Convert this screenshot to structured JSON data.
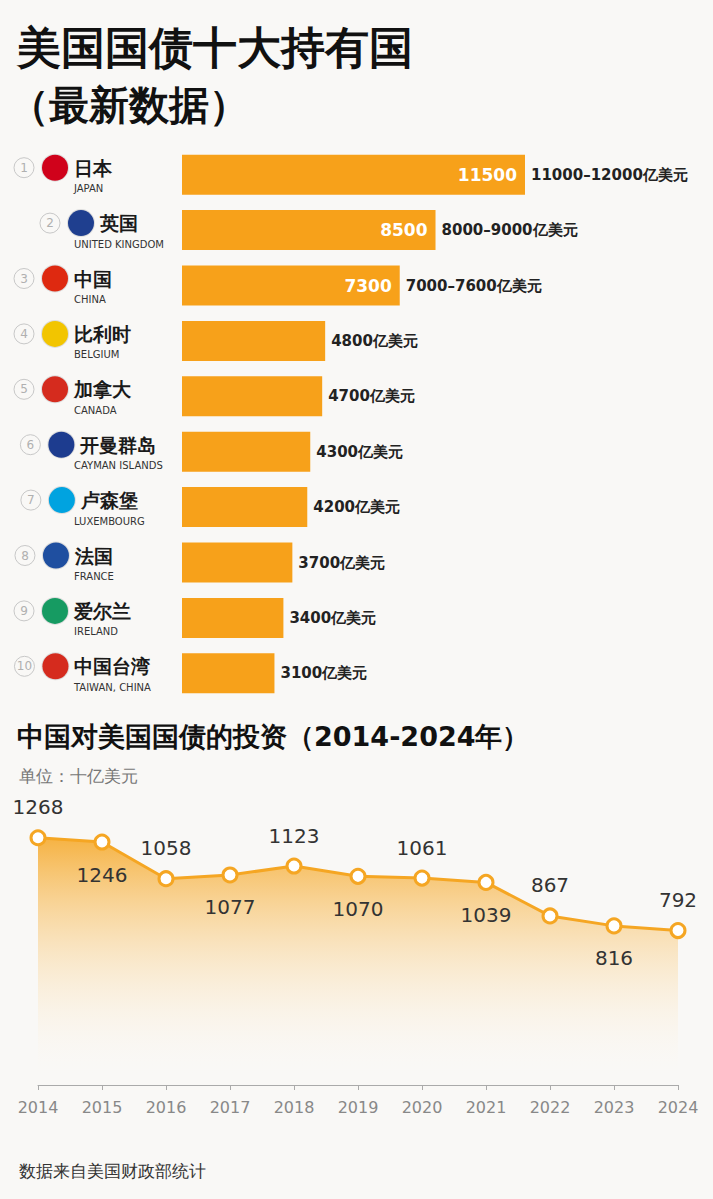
{
  "chart_data": [
    {
      "type": "bar",
      "title": "美国国债十大持有国",
      "subtitle": "（最新数据）",
      "orientation": "horizontal",
      "ranks": [
        1,
        2,
        3,
        4,
        5,
        6,
        7,
        8,
        9,
        10
      ],
      "categories": [
        "日本",
        "英国",
        "中国",
        "比利时",
        "加拿大",
        "开曼群岛",
        "卢森堡",
        "法国",
        "爱尔兰",
        "中国台湾"
      ],
      "categories_en": [
        "JAPAN",
        "UNITED KINGDOM",
        "CHINA",
        "BELGIUM",
        "CANADA",
        "CAYMAN ISLANDS",
        "LUXEMBOURG",
        "FRANCE",
        "IRELAND",
        "TAIWAN, CHINA"
      ],
      "values": [
        11500,
        8500,
        7300,
        4800,
        4700,
        4300,
        4200,
        3700,
        3400,
        3100
      ],
      "inside_labels": [
        "11500",
        "8500",
        "7300",
        null,
        null,
        null,
        null,
        null,
        null,
        null
      ],
      "value_labels": [
        "11000–12000亿美元",
        "8000–9000亿美元",
        "7000–7600亿美元",
        "4800亿美元",
        "4700亿美元",
        "4300亿美元",
        "4200亿美元",
        "3700亿美元",
        "3400亿美元",
        "3100亿美元"
      ],
      "color": "#F7A11A",
      "xlim": [
        0,
        11500
      ],
      "tick_labels": "y",
      "grid": false,
      "data_labels": true
    },
    {
      "type": "line",
      "title": "中国对美国国债的投资（2014-2024年）",
      "subtitle": "单位：十亿美元",
      "source": "数据来自美国财政部统计",
      "categories": [
        "2014",
        "2015",
        "2016",
        "2017",
        "2018",
        "2019",
        "2020",
        "2021",
        "2022",
        "2023",
        "2024"
      ],
      "values": [
        1268,
        1246,
        1058,
        1077,
        1123,
        1070,
        1061,
        1039,
        867,
        816,
        792
      ],
      "color": "#F5A623",
      "marker": "circle",
      "ylim": [
        0,
        1400
      ],
      "tick_labels": "x",
      "grid": false,
      "data_labels": true
    }
  ]
}
